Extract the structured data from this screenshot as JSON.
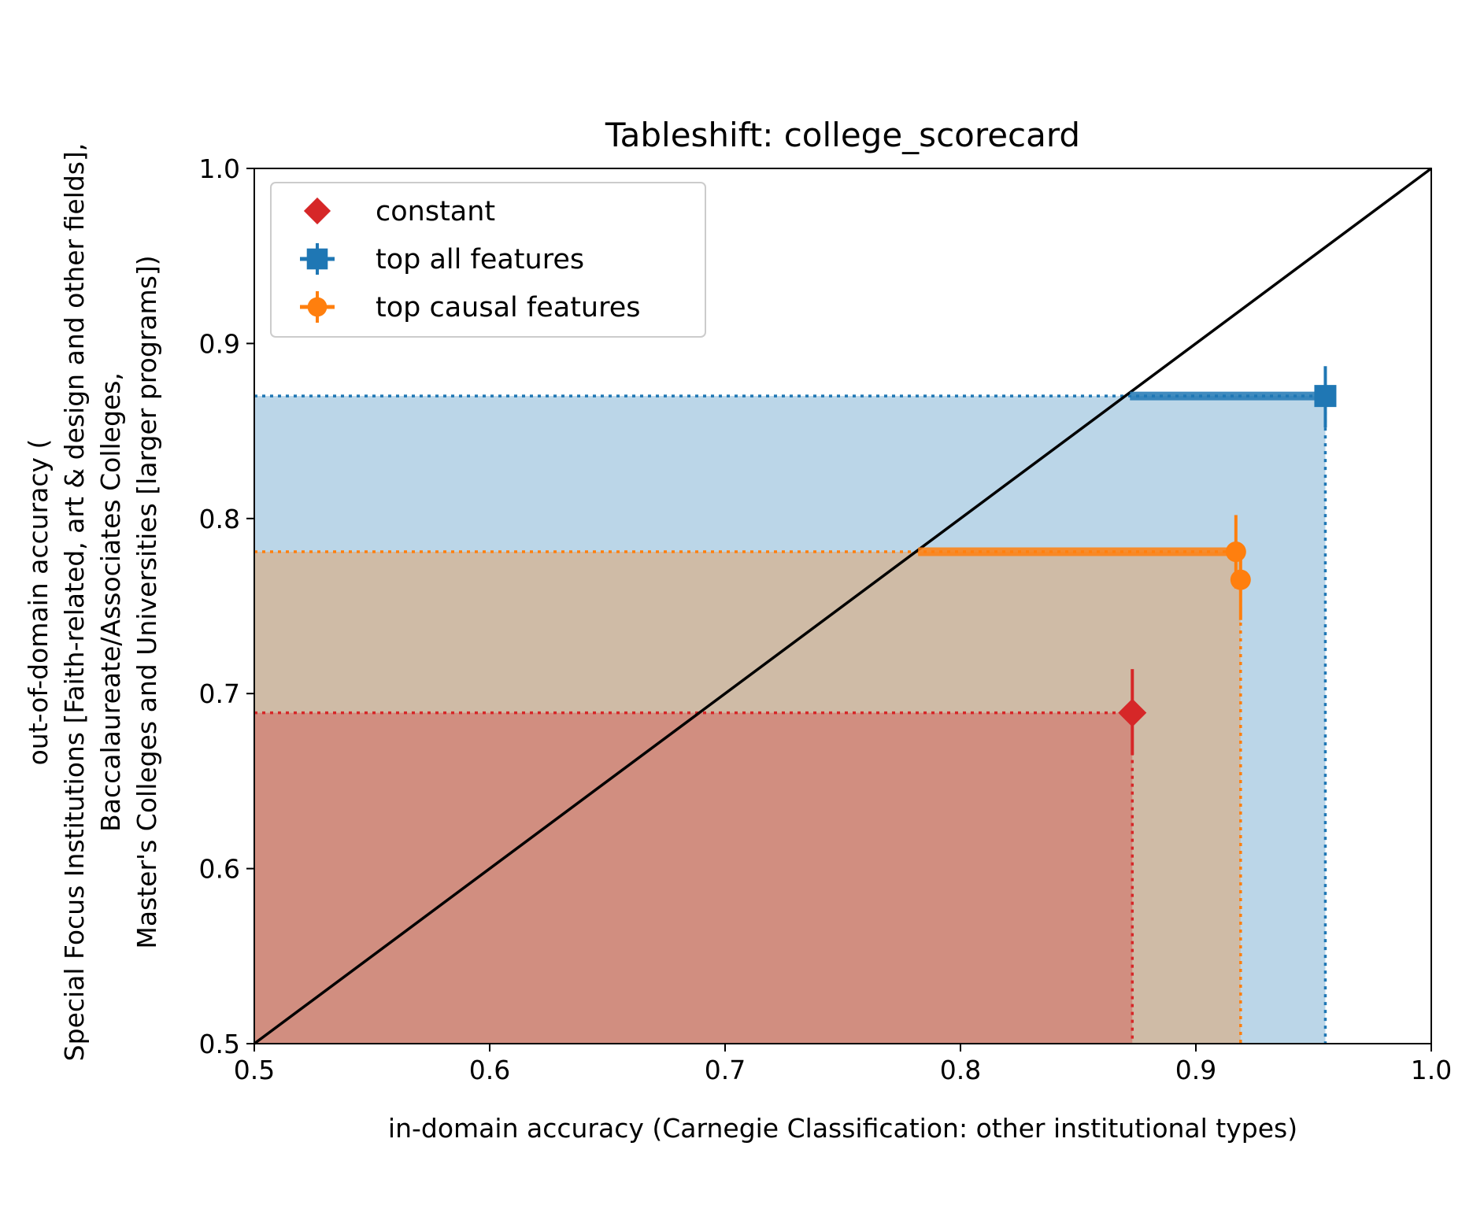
{
  "chart_data": {
    "type": "scatter",
    "title": "Tableshift: college_scorecard",
    "xlabel": "in-domain accuracy (Carnegie Classification: other institutional types)",
    "ylabel_lines": [
      "out-of-domain accuracy (",
      "Special Focus Institutions [Faith-related, art & design and other fields],",
      "Baccalaureate/Associates Colleges,",
      "Master's Colleges and Universities [larger programs])"
    ],
    "xlim": [
      0.5,
      1.0
    ],
    "ylim": [
      0.5,
      1.0
    ],
    "xticks": [
      "0.5",
      "0.6",
      "0.7",
      "0.8",
      "0.9",
      "1.0"
    ],
    "yticks": [
      "0.5",
      "0.6",
      "0.7",
      "0.8",
      "0.9",
      "1.0"
    ],
    "grid": false,
    "legend_position": "top-left",
    "diagonal": true,
    "series": [
      {
        "name": "constant",
        "color": "#d62728",
        "marker": "diamond",
        "points": [
          {
            "x": 0.873,
            "y": 0.689,
            "yerr": [
              0.665,
              0.714
            ]
          }
        ],
        "shade_to": {
          "x": 0.873,
          "y": 0.689
        }
      },
      {
        "name": "top all features",
        "color": "#1f77b4",
        "marker": "square",
        "points": [
          {
            "x": 0.955,
            "y": 0.87,
            "xerr": [
              0.872,
              0.955
            ],
            "yerr": [
              0.852,
              0.887
            ]
          }
        ],
        "shade_to": {
          "x": 0.955,
          "y": 0.87
        }
      },
      {
        "name": "top causal features",
        "color": "#ff7f0e",
        "marker": "circle",
        "points": [
          {
            "x": 0.917,
            "y": 0.781,
            "xerr": [
              0.782,
              0.917
            ],
            "yerr": [
              0.76,
              0.802
            ]
          },
          {
            "x": 0.919,
            "y": 0.765,
            "yerr": [
              0.742,
              0.781
            ]
          }
        ],
        "shade_to": {
          "x": 0.919,
          "y": 0.781
        }
      }
    ]
  }
}
